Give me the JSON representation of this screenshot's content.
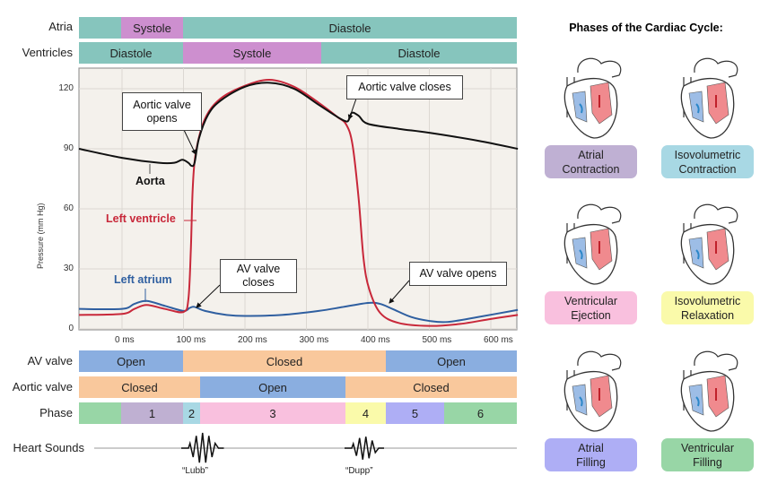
{
  "rows": {
    "atria": {
      "label": "Atria",
      "segments": [
        "",
        "Systole",
        "Diastole"
      ]
    },
    "ventricles": {
      "label": "Ventricles",
      "segments": [
        "Diastole",
        "Systole",
        "Diastole"
      ]
    },
    "av_valve": {
      "label": "AV valve",
      "segments": [
        "Open",
        "Closed",
        "Open"
      ]
    },
    "aortic_valve": {
      "label": "Aortic valve",
      "segments": [
        "Closed",
        "Open",
        "Closed"
      ]
    },
    "phase": {
      "label": "Phase",
      "segments": [
        "",
        "1",
        "2",
        "3",
        "4",
        "5",
        "6"
      ]
    },
    "heart_sounds": {
      "label": "Heart Sounds",
      "lubb": "“Lubb”",
      "dupp": "“Dupp”"
    }
  },
  "colors": {
    "diastole": "#86c5bd",
    "systole": "#cd8fcf",
    "open": "#8aaee0",
    "closed": "#f9c89c",
    "phases": [
      "#98d6a6",
      "#bfb0d2",
      "#a8d8e4",
      "#f9c0de",
      "#fafaaa",
      "#aeaef5",
      "#98d6a6"
    ],
    "aorta": "#111111",
    "left_ventricle": "#c8283a",
    "left_atrium": "#2f5fa0",
    "plot_bg": "#f4f1ec"
  },
  "chart_data": {
    "type": "line",
    "ylabel": "Pressure (mm Hg)",
    "yticks": [
      0,
      30,
      60,
      90,
      120
    ],
    "xticks": [
      "0 ms",
      "100 ms",
      "200 ms",
      "300 ms",
      "400 ms",
      "500 ms",
      "600 ms"
    ],
    "xlim": [
      -70,
      644
    ],
    "ylim": [
      0,
      130
    ],
    "grid": true,
    "series": [
      {
        "name": "Aorta",
        "points": [
          [
            -70,
            90
          ],
          [
            0,
            85.5
          ],
          [
            60,
            83
          ],
          [
            85,
            83
          ],
          [
            98,
            84.5
          ],
          [
            108,
            83
          ],
          [
            113,
            81.5
          ],
          [
            118,
            83
          ],
          [
            125,
            95
          ],
          [
            140,
            107
          ],
          [
            160,
            114
          ],
          [
            200,
            121
          ],
          [
            240,
            123
          ],
          [
            280,
            120
          ],
          [
            320,
            112
          ],
          [
            350,
            106
          ],
          [
            362,
            104
          ],
          [
            368,
            104
          ],
          [
            374,
            108
          ],
          [
            385,
            106.5
          ],
          [
            400,
            102.5
          ],
          [
            450,
            100
          ],
          [
            500,
            98
          ],
          [
            580,
            94
          ],
          [
            644,
            90
          ]
        ]
      },
      {
        "name": "Left ventricle",
        "points": [
          [
            -70,
            7
          ],
          [
            0,
            7.5
          ],
          [
            20,
            10
          ],
          [
            40,
            12
          ],
          [
            70,
            10
          ],
          [
            100,
            8.5
          ],
          [
            108,
            15
          ],
          [
            112,
            40
          ],
          [
            115,
            70
          ],
          [
            120,
            88
          ],
          [
            135,
            105
          ],
          [
            160,
            115
          ],
          [
            200,
            121.5
          ],
          [
            240,
            124.5
          ],
          [
            280,
            121
          ],
          [
            320,
            113
          ],
          [
            350,
            106
          ],
          [
            365,
            102
          ],
          [
            375,
            92
          ],
          [
            385,
            65
          ],
          [
            393,
            35
          ],
          [
            402,
            20
          ],
          [
            420,
            8
          ],
          [
            450,
            3
          ],
          [
            500,
            1.5
          ],
          [
            550,
            2.5
          ],
          [
            600,
            5
          ],
          [
            644,
            7
          ]
        ]
      },
      {
        "name": "Left atrium",
        "points": [
          [
            -70,
            10
          ],
          [
            0,
            10
          ],
          [
            20,
            12.5
          ],
          [
            40,
            14
          ],
          [
            70,
            11.5
          ],
          [
            100,
            9
          ],
          [
            110,
            10.5
          ],
          [
            118,
            11
          ],
          [
            135,
            9
          ],
          [
            170,
            7
          ],
          [
            200,
            6.5
          ],
          [
            260,
            7
          ],
          [
            320,
            9
          ],
          [
            360,
            11
          ],
          [
            400,
            13
          ],
          [
            420,
            12.5
          ],
          [
            440,
            10
          ],
          [
            470,
            6
          ],
          [
            500,
            4
          ],
          [
            530,
            3.5
          ],
          [
            580,
            6
          ],
          [
            644,
            9.5
          ]
        ]
      }
    ],
    "annotations": [
      "Aortic valve opens",
      "Aortic valve closes",
      "AV valve closes",
      "AV valve opens"
    ]
  },
  "labels": {
    "aorta": "Aorta",
    "left_ventricle": "Left ventricle",
    "left_atrium": "Left atrium",
    "aov_opens": [
      "Aortic valve",
      "opens"
    ],
    "aov_closes": "Aortic valve closes",
    "avv_closes": [
      "AV valve",
      "closes"
    ],
    "avv_opens": "AV valve opens"
  },
  "right_panel": {
    "title": "Phases of the Cardiac Cycle:",
    "phases": [
      {
        "l1": "Atrial",
        "l2": "Contraction",
        "color": "#bfb0d3"
      },
      {
        "l1": "Isovolumetric",
        "l2": "Contraction",
        "color": "#a8d8e4"
      },
      {
        "l1": "Ventricular",
        "l2": "Ejection",
        "color": "#f9c0de"
      },
      {
        "l1": "Isovolumetric",
        "l2": "Relaxation",
        "color": "#fafaaa"
      },
      {
        "l1": "Atrial",
        "l2": "Filling",
        "color": "#aeaef5"
      },
      {
        "l1": "Ventricular",
        "l2": "Filling",
        "color": "#98d6a6"
      }
    ]
  }
}
